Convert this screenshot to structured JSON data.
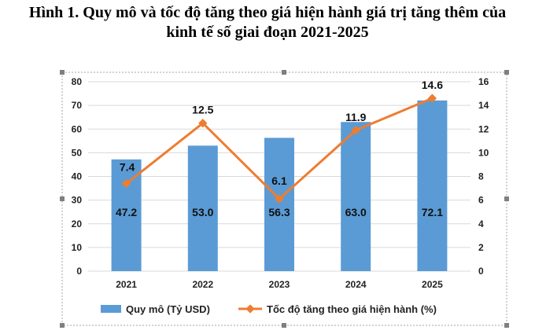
{
  "header": {
    "title_line1": "Hình 1. Quy mô và tốc độ tăng theo giá hiện hành giá trị tăng thêm của",
    "title_line2": "kinh tế số giai đoạn 2021-2025"
  },
  "chart_data": {
    "type": "bar",
    "categories": [
      "2021",
      "2022",
      "2023",
      "2024",
      "2025"
    ],
    "series": [
      {
        "name": "Quy mô (Tỷ USD)",
        "type": "bar",
        "axis": "left",
        "color": "#5b9bd5",
        "values": [
          47.2,
          53.0,
          56.3,
          63.0,
          72.1
        ],
        "labels": [
          "47.2",
          "53.0",
          "56.3",
          "63.0",
          "72.1"
        ]
      },
      {
        "name": "Tốc độ tăng theo giá hiện hành (%)",
        "type": "line",
        "axis": "right",
        "color": "#ed7d31",
        "values": [
          7.4,
          12.5,
          6.1,
          11.9,
          14.6
        ],
        "labels": [
          "7.4",
          "12.5",
          "6.1",
          "11.9",
          "14.6"
        ]
      }
    ],
    "ylim_left": [
      0,
      80
    ],
    "yticks_left": [
      "0",
      "10",
      "20",
      "30",
      "40",
      "50",
      "60",
      "70",
      "80"
    ],
    "ylim_right": [
      0,
      16
    ],
    "yticks_right": [
      "0",
      "2",
      "4",
      "6",
      "8",
      "10",
      "12",
      "14",
      "16"
    ],
    "grid": true,
    "legend_position": "bottom"
  }
}
